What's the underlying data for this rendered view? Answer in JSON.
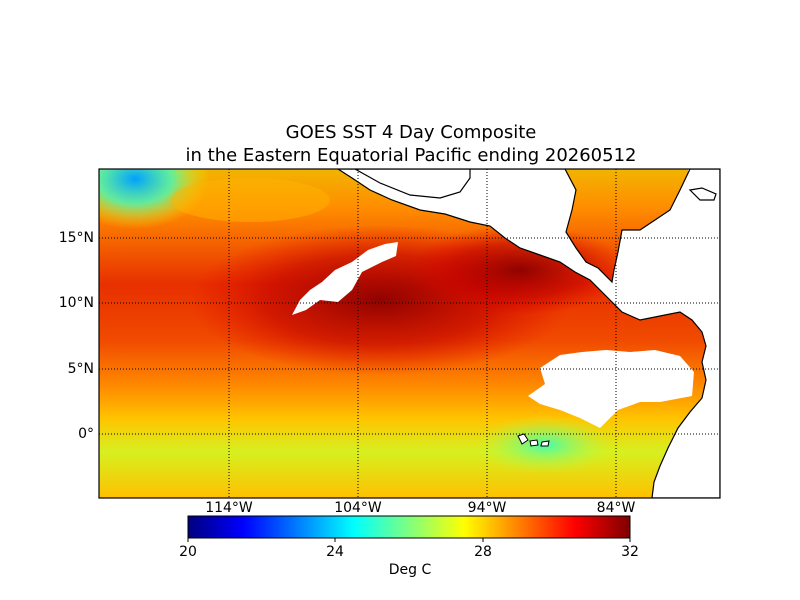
{
  "map": {
    "title_line1": "GOES SST 4 Day Composite",
    "title_line2": "in the Eastern Equatorial Pacific ending 20260512",
    "lat_labels": [
      "15°N",
      "10°N",
      "5°N",
      "0°"
    ],
    "lon_labels": [
      "114°W",
      "104°W",
      "94°W",
      "84°W"
    ],
    "region": "Eastern Equatorial Pacific",
    "composite_end_date": "20260512"
  },
  "colorbar": {
    "label": "Deg C",
    "ticks": [
      "20",
      "24",
      "28",
      "32"
    ],
    "range": [
      20,
      32
    ],
    "colors": [
      "#00007f",
      "#0000ff",
      "#007fff",
      "#00ffff",
      "#7fff7f",
      "#ffff00",
      "#ff7f00",
      "#ff0000",
      "#7f0000"
    ]
  },
  "colors": {
    "land": "#ffffff",
    "no_data": "#ffffff",
    "coastline": "#000000"
  }
}
